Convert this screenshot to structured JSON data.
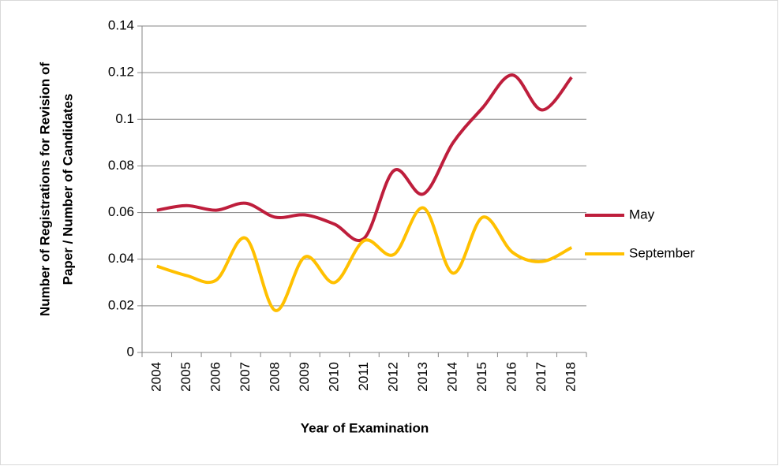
{
  "chart_data": {
    "type": "line",
    "ylabel": [
      "Number of Registrations for Revision of",
      "Paper / Number of Candidates"
    ],
    "xlabel": "Year of Examination",
    "categories": [
      "2004",
      "2005",
      "2006",
      "2007",
      "2008",
      "2009",
      "2010",
      "2011",
      "2012",
      "2013",
      "2014",
      "2015",
      "2016",
      "2017",
      "2018"
    ],
    "series": [
      {
        "name": "May",
        "color": "#be1e3c",
        "values": [
          0.061,
          0.063,
          0.061,
          0.064,
          0.058,
          0.059,
          0.055,
          0.049,
          0.078,
          0.068,
          0.09,
          0.105,
          0.119,
          0.104,
          0.118
        ]
      },
      {
        "name": "September",
        "color": "#ffc000",
        "values": [
          0.037,
          0.033,
          0.031,
          0.049,
          0.018,
          0.041,
          0.03,
          0.048,
          0.042,
          0.062,
          0.034,
          0.058,
          0.043,
          0.039,
          0.045
        ]
      }
    ],
    "ylim": [
      0,
      0.14
    ],
    "yticks": [
      0,
      0.02,
      0.04,
      0.06,
      0.08,
      0.1,
      0.12,
      0.14
    ],
    "grid": true,
    "smooth": true,
    "legend": "right"
  }
}
